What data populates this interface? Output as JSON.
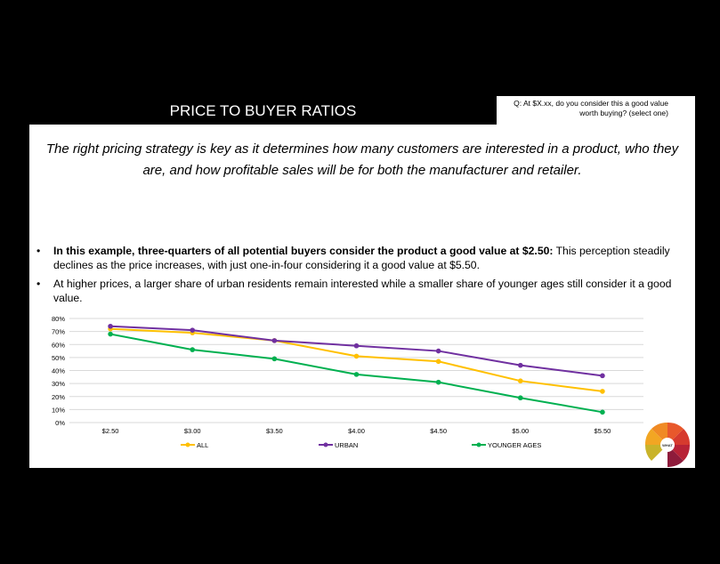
{
  "slide": {
    "title": "PRICE TO BUYER RATIOS",
    "question": "Q:  At $X.xx, do you consider this a good value worth buying? (select one)",
    "intro": "The right pricing strategy is key as it determines how many customers are interested in a product, who they are, and how profitable sales will be for both the manufacturer and retailer.",
    "bullets": [
      {
        "marker": "•",
        "bold": "In this example, three-quarters of all potential buyers consider the product a good value at $2.50:",
        "text": "  This perception steadily declines as the price increases, with just one-in-four considering it a good value at $5.50."
      },
      {
        "marker": "•",
        "bold": "",
        "text": "At higher prices, a larger share of urban residents remain interested while a smaller share of younger ages still consider it a good value."
      }
    ],
    "logo_text": "WHAT"
  },
  "colors": {
    "all": "#FFC000",
    "urban": "#7030A0",
    "younger": "#00B050",
    "grid": "#d9d9d9"
  },
  "chart_data": {
    "type": "line",
    "x": [
      "$2.50",
      "$3.00",
      "$3.50",
      "$4.00",
      "$4.50",
      "$5.00",
      "$5.50"
    ],
    "yticks": [
      "0%",
      "10%",
      "20%",
      "30%",
      "40%",
      "50%",
      "60%",
      "70%",
      "80%"
    ],
    "ylim": [
      0,
      80
    ],
    "grid": true,
    "legend_position": "bottom",
    "series": [
      {
        "name": "ALL",
        "values": [
          72,
          69,
          63,
          51,
          47,
          32,
          24
        ]
      },
      {
        "name": "URBAN",
        "values": [
          74,
          71,
          63,
          59,
          55,
          44,
          36
        ]
      },
      {
        "name": "YOUNGER AGES",
        "values": [
          68,
          56,
          49,
          37,
          31,
          19,
          8
        ]
      }
    ]
  }
}
